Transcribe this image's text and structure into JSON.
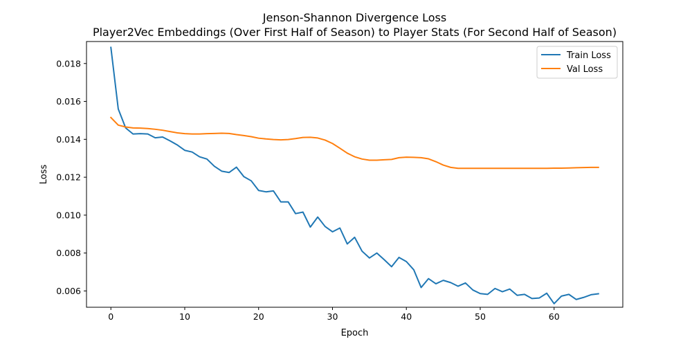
{
  "chart_data": {
    "type": "line",
    "title": "Jenson-Shannon Divergence Loss",
    "subtitle": "Player2Vec Embeddings (Over First Half of Season) to Player Stats (For Second Half of Season)",
    "xlabel": "Epoch",
    "ylabel": "Loss",
    "xlim": [
      -3.3,
      69.3
    ],
    "ylim": [
      0.00514,
      0.01916
    ],
    "xticks": [
      0,
      10,
      20,
      30,
      40,
      50,
      60
    ],
    "xtick_labels": [
      "0",
      "10",
      "20",
      "30",
      "40",
      "50",
      "60"
    ],
    "yticks": [
      0.006,
      0.008,
      0.01,
      0.012,
      0.014,
      0.016,
      0.018
    ],
    "ytick_labels": [
      "0.006",
      "0.008",
      "0.010",
      "0.012",
      "0.014",
      "0.016",
      "0.018"
    ],
    "grid": false,
    "legend_position": "top-right",
    "series": [
      {
        "name": "Train Loss",
        "color": "#1f77b4",
        "x": [
          0,
          1,
          2,
          3,
          4,
          5,
          6,
          7,
          8,
          9,
          10,
          11,
          12,
          13,
          14,
          15,
          16,
          17,
          18,
          19,
          20,
          21,
          22,
          23,
          24,
          25,
          26,
          27,
          28,
          29,
          30,
          31,
          32,
          33,
          34,
          35,
          36,
          37,
          38,
          39,
          40,
          41,
          42,
          43,
          44,
          45,
          46,
          47,
          48,
          49,
          50,
          51,
          52,
          53,
          54,
          55,
          56,
          57,
          58,
          59,
          60,
          61,
          62,
          63,
          64,
          65,
          66
        ],
        "values": [
          0.01885,
          0.0156,
          0.0146,
          0.01428,
          0.0143,
          0.01428,
          0.01408,
          0.01412,
          0.01392,
          0.0137,
          0.01342,
          0.01333,
          0.01308,
          0.01296,
          0.01258,
          0.01232,
          0.01225,
          0.01253,
          0.01203,
          0.01181,
          0.0113,
          0.01123,
          0.01128,
          0.0107,
          0.0107,
          0.01008,
          0.01016,
          0.00937,
          0.0099,
          0.0094,
          0.00912,
          0.00932,
          0.00848,
          0.00883,
          0.0081,
          0.00774,
          0.008,
          0.00765,
          0.00728,
          0.00777,
          0.00755,
          0.00712,
          0.00618,
          0.00665,
          0.00638,
          0.00656,
          0.00644,
          0.00625,
          0.00642,
          0.00605,
          0.00586,
          0.00582,
          0.00613,
          0.00596,
          0.0061,
          0.00577,
          0.00582,
          0.0056,
          0.00563,
          0.00588,
          0.00533,
          0.00573,
          0.00582,
          0.00555,
          0.00566,
          0.0058,
          0.00585
        ]
      },
      {
        "name": "Val Loss",
        "color": "#ff7f0e",
        "x": [
          0,
          1,
          2,
          3,
          4,
          5,
          6,
          7,
          8,
          9,
          10,
          11,
          12,
          13,
          14,
          15,
          16,
          17,
          18,
          19,
          20,
          21,
          22,
          23,
          24,
          25,
          26,
          27,
          28,
          29,
          30,
          31,
          32,
          33,
          34,
          35,
          36,
          37,
          38,
          39,
          40,
          41,
          42,
          43,
          44,
          45,
          46,
          47,
          48,
          49,
          50,
          51,
          52,
          53,
          54,
          55,
          56,
          57,
          58,
          59,
          60,
          61,
          62,
          63,
          64,
          65,
          66
        ],
        "values": [
          0.01515,
          0.01475,
          0.01465,
          0.0146,
          0.01459,
          0.01457,
          0.01453,
          0.01448,
          0.01441,
          0.01434,
          0.0143,
          0.01428,
          0.01428,
          0.0143,
          0.01431,
          0.01432,
          0.01431,
          0.01425,
          0.0142,
          0.01414,
          0.01406,
          0.01402,
          0.01399,
          0.01397,
          0.01399,
          0.01404,
          0.0141,
          0.01411,
          0.01407,
          0.01396,
          0.01378,
          0.01353,
          0.01327,
          0.01308,
          0.01296,
          0.0129,
          0.0129,
          0.01292,
          0.01294,
          0.01303,
          0.01306,
          0.01305,
          0.01303,
          0.01297,
          0.01282,
          0.01264,
          0.01252,
          0.01247,
          0.01247,
          0.01247,
          0.01247,
          0.01247,
          0.01247,
          0.01247,
          0.01247,
          0.01247,
          0.01247,
          0.01247,
          0.01247,
          0.01247,
          0.01248,
          0.01248,
          0.01249,
          0.0125,
          0.01251,
          0.01252,
          0.01252
        ]
      }
    ]
  }
}
